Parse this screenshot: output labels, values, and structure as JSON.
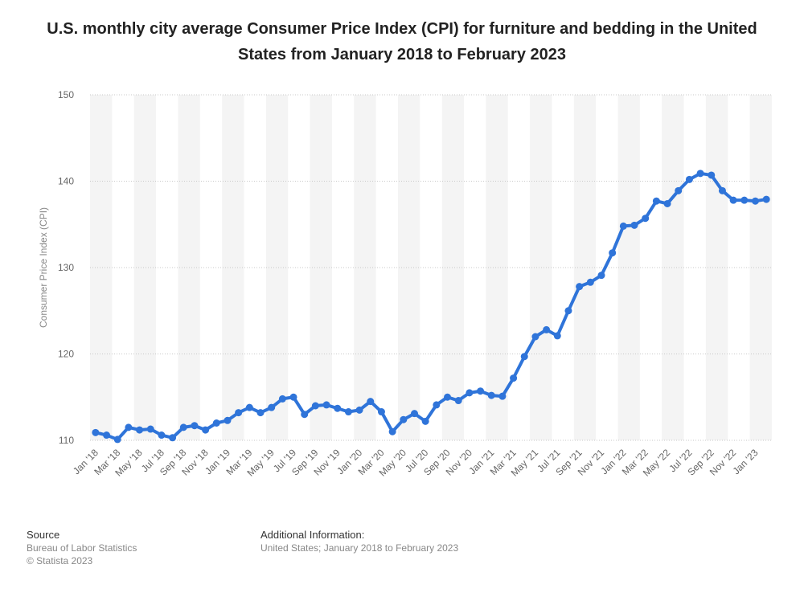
{
  "chart_data": {
    "type": "line",
    "title": "U.S. monthly city average Consumer Price Index (CPI) for furniture and bedding in the United States from January 2018 to February 2023",
    "xlabel": "",
    "ylabel": "Consumer Price Index (CPI)",
    "ylim": [
      110,
      150
    ],
    "yticks": [
      110,
      120,
      130,
      140,
      150
    ],
    "grid": true,
    "line_color": "#2f74d9",
    "categories": [
      "Jan '18",
      "Feb '18",
      "Mar '18",
      "Apr '18",
      "May '18",
      "Jun '18",
      "Jul '18",
      "Aug '18",
      "Sep '18",
      "Oct '18",
      "Nov '18",
      "Dec '18",
      "Jan '19",
      "Feb '19",
      "Mar '19",
      "Apr '19",
      "May '19",
      "Jun '19",
      "Jul '19",
      "Aug '19",
      "Sep '19",
      "Oct '19",
      "Nov '19",
      "Dec '19",
      "Jan '20",
      "Feb '20",
      "Mar '20",
      "Apr '20",
      "May '20",
      "Jun '20",
      "Jul '20",
      "Aug '20",
      "Sep '20",
      "Oct '20",
      "Nov '20",
      "Dec '20",
      "Jan '21",
      "Feb '21",
      "Mar '21",
      "Apr '21",
      "May '21",
      "Jun '21",
      "Jul '21",
      "Aug '21",
      "Sep '21",
      "Oct '21",
      "Nov '21",
      "Dec '21",
      "Jan '22",
      "Feb '22",
      "Mar '22",
      "Apr '22",
      "May '22",
      "Jun '22",
      "Jul '22",
      "Aug '22",
      "Sep '22",
      "Oct '22",
      "Nov '22",
      "Dec '22",
      "Jan '23",
      "Feb '23"
    ],
    "x_tick_labels": [
      "Jan '18",
      "Mar '18",
      "May '18",
      "Jul '18",
      "Sep '18",
      "Nov '18",
      "Jan '19",
      "Mar '19",
      "May '19",
      "Jul '19",
      "Sep '19",
      "Nov '19",
      "Jan '20",
      "Mar '20",
      "May '20",
      "Jul '20",
      "Sep '20",
      "Nov '20",
      "Jan '21",
      "Mar '21",
      "May '21",
      "Jul '21",
      "Sep '21",
      "Nov '21",
      "Jan '22",
      "Mar '22",
      "May '22",
      "Jul '22",
      "Sep '22",
      "Nov '22",
      "Jan '23"
    ],
    "series": [
      {
        "name": "CPI",
        "values": [
          110.9,
          110.6,
          110.1,
          111.5,
          111.2,
          111.3,
          110.6,
          110.3,
          111.5,
          111.7,
          111.2,
          112.0,
          112.3,
          113.2,
          113.8,
          113.2,
          113.8,
          114.8,
          115.0,
          113.0,
          114.0,
          114.1,
          113.7,
          113.3,
          113.5,
          114.5,
          113.3,
          111.0,
          112.4,
          113.1,
          112.2,
          114.1,
          115.0,
          114.6,
          115.5,
          115.7,
          115.2,
          115.1,
          117.2,
          119.7,
          122.0,
          122.8,
          122.1,
          125.0,
          127.8,
          128.3,
          129.1,
          131.7,
          134.8,
          134.9,
          135.7,
          137.7,
          137.4,
          138.9,
          140.2,
          140.9,
          140.7,
          138.9,
          137.8,
          137.8,
          137.7,
          137.9
        ]
      }
    ]
  },
  "footer": {
    "source_label": "Source",
    "source_lines": [
      "Bureau of Labor Statistics",
      "© Statista 2023"
    ],
    "additional_label": "Additional Information:",
    "additional_text": "United States; January 2018 to February 2023"
  }
}
